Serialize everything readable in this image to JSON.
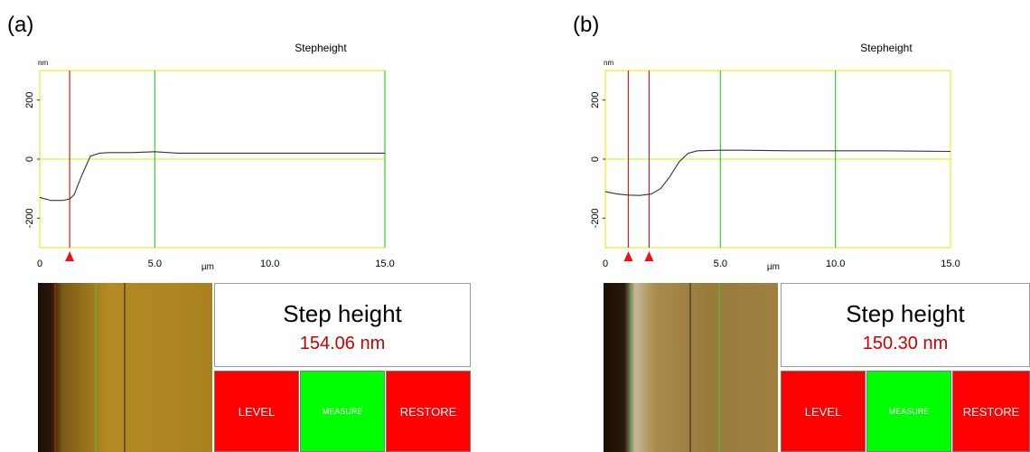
{
  "panels": [
    {
      "label": "(a)",
      "chart_title": "Stepheight",
      "y_unit": "nm",
      "x_unit": "µm",
      "x_ticks": [
        "0",
        "5.0",
        "10.0",
        "15.0"
      ],
      "y_ticks": [
        "200",
        "0",
        "-200"
      ],
      "result_title": "Step height",
      "result_value": "154.06 nm",
      "buttons": {
        "level": "LEVEL",
        "measure": "MEASURE",
        "restore": "RESTORE"
      }
    },
    {
      "label": "(b)",
      "chart_title": "Stepheight",
      "y_unit": "nm",
      "x_unit": "µm",
      "x_ticks": [
        "0",
        "5.0",
        "10.0",
        "15.0"
      ],
      "y_ticks": [
        "200",
        "0",
        "-200"
      ],
      "result_title": "Step height",
      "result_value": "150.30 nm",
      "buttons": {
        "level": "LEVEL",
        "measure": "MEASURE",
        "restore": "RESTORE"
      }
    }
  ],
  "chart_data": [
    {
      "type": "line",
      "title": "Stepheight",
      "xlabel": "µm",
      "ylabel": "nm",
      "xlim": [
        0,
        15
      ],
      "ylim": [
        -300,
        300
      ],
      "series": [
        {
          "x": [
            0,
            0.5,
            1.0,
            1.3,
            1.5,
            1.8,
            2.2,
            2.6,
            3.0,
            4.0,
            5.0,
            6.0,
            8.0,
            10.0,
            12.0,
            15.0
          ],
          "y": [
            -130,
            -140,
            -140,
            -135,
            -120,
            -60,
            10,
            20,
            22,
            22,
            25,
            20,
            20,
            20,
            20,
            20
          ]
        }
      ],
      "red_cursors_x": [
        1.3
      ],
      "green_cursors_x": [
        5.0,
        15.0
      ],
      "red_markers_x": [
        1.3
      ]
    },
    {
      "type": "line",
      "title": "Stepheight",
      "xlabel": "µm",
      "ylabel": "nm",
      "xlim": [
        0,
        15
      ],
      "ylim": [
        -300,
        300
      ],
      "series": [
        {
          "x": [
            0,
            0.5,
            1.0,
            1.5,
            2.0,
            2.4,
            2.8,
            3.2,
            3.6,
            4.0,
            5.0,
            6.0,
            8.0,
            10.0,
            12.0,
            15.0
          ],
          "y": [
            -110,
            -118,
            -122,
            -123,
            -118,
            -100,
            -60,
            -10,
            20,
            28,
            30,
            30,
            28,
            28,
            28,
            26
          ]
        }
      ],
      "red_cursors_x": [
        1.0,
        1.9
      ],
      "green_cursors_x": [
        5.0,
        10.0
      ],
      "red_markers_x": [
        1.0,
        1.9
      ]
    }
  ],
  "colors": {
    "axis": "#e8e800",
    "zero_line": "#e8e800",
    "red_cursor": "#cc2222",
    "green_cursor": "#33cc33",
    "trace": "#333333",
    "button_red": "#ff0000",
    "button_green": "#00ff00",
    "result_value": "#cc0000"
  }
}
